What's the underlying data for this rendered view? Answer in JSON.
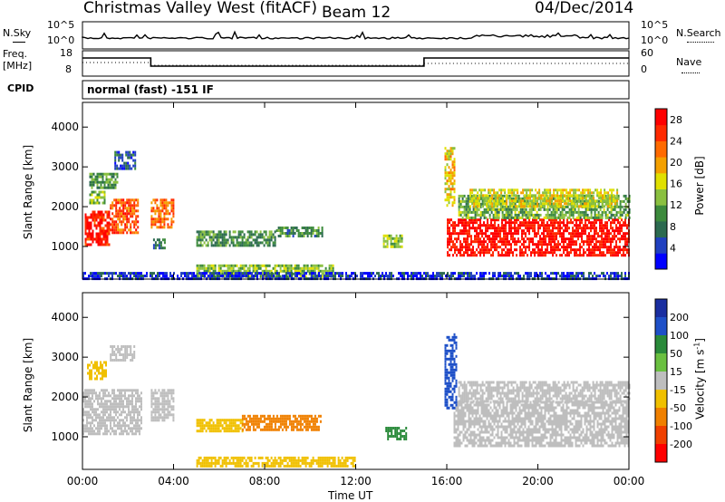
{
  "header": {
    "station": "Christmas Valley West (fitACF)",
    "beam": "Beam 12",
    "date": "04/Dec/2014"
  },
  "noise_panel": {
    "left_label": "N.Sky",
    "right_label": "N.Search",
    "left_ticks": [
      "10^5",
      "10^0"
    ],
    "right_ticks": [
      "10^5",
      "10^0"
    ]
  },
  "freq_panel": {
    "left_label": "Freq.",
    "left_unit": "[MHz]",
    "right_label": "Nave",
    "left_ticks": [
      "18",
      "8"
    ],
    "right_ticks": [
      "60",
      "0"
    ]
  },
  "cpid": {
    "label": "CPID",
    "value": "normal (fast) -151 IF"
  },
  "colors": {
    "trace": "#000000",
    "frame": "#000000",
    "ground_scatter": "#bebebe"
  },
  "chart_data": [
    {
      "type": "heatmap",
      "title": "Power",
      "xlabel": "",
      "ylabel": "Slant Range [km]",
      "x_ticks": [
        "00:00",
        "04:00",
        "08:00",
        "12:00",
        "16:00",
        "20:00",
        "00:00"
      ],
      "x_range_hours": [
        0,
        24
      ],
      "y_ticks": [
        1000,
        2000,
        3000,
        4000
      ],
      "ylim": [
        180,
        4620
      ],
      "colorbar": {
        "label": "Power [dB]",
        "ticks": [
          4,
          8,
          12,
          16,
          20,
          24,
          28
        ],
        "range": [
          0,
          30
        ],
        "colors": [
          "#0000ff",
          "#2040c0",
          "#2c6a50",
          "#3c8a3c",
          "#8ac040",
          "#e0e000",
          "#f4a000",
          "#ff6a00",
          "#ff2a00",
          "#ff0000"
        ]
      },
      "regions": [
        {
          "t": [
            0.1,
            1.2
          ],
          "r": [
            1050,
            1900
          ],
          "db": 27
        },
        {
          "t": [
            1.2,
            2.4
          ],
          "r": [
            1350,
            2200
          ],
          "db": 24
        },
        {
          "t": [
            0.3,
            1.5
          ],
          "r": [
            2500,
            2850
          ],
          "db": 10
        },
        {
          "t": [
            1.4,
            2.3
          ],
          "r": [
            2950,
            3400
          ],
          "db": 6
        },
        {
          "t": [
            0.3,
            1.0
          ],
          "r": [
            2100,
            2400
          ],
          "db": 14
        },
        {
          "t": [
            3.0,
            4.0
          ],
          "r": [
            1450,
            2200
          ],
          "db": 22
        },
        {
          "t": [
            3.1,
            3.6
          ],
          "r": [
            950,
            1200
          ],
          "db": 8
        },
        {
          "t": [
            5.0,
            8.5
          ],
          "r": [
            1050,
            1400
          ],
          "db": 10
        },
        {
          "t": [
            8.5,
            10.5
          ],
          "r": [
            1250,
            1500
          ],
          "db": 9
        },
        {
          "t": [
            5.0,
            11.0
          ],
          "r": [
            250,
            550
          ],
          "db": 13
        },
        {
          "t": [
            13.2,
            14.0
          ],
          "r": [
            1000,
            1300
          ],
          "db": 14
        },
        {
          "t": [
            15.9,
            16.3
          ],
          "r": [
            2000,
            3500
          ],
          "db": 18
        },
        {
          "t": [
            16.0,
            24.0
          ],
          "r": [
            800,
            1700
          ],
          "db": 28
        },
        {
          "t": [
            16.5,
            24.0
          ],
          "r": [
            1700,
            2300
          ],
          "db": 12
        },
        {
          "t": [
            17.0,
            23.5
          ],
          "r": [
            2000,
            2450
          ],
          "db": 16
        },
        {
          "t": [
            0.0,
            24.0
          ],
          "r": [
            200,
            360
          ],
          "db": 4
        }
      ]
    },
    {
      "type": "heatmap",
      "title": "Velocity",
      "xlabel": "Time UT",
      "ylabel": "Slant Range [km]",
      "x_ticks": [
        "00:00",
        "04:00",
        "08:00",
        "12:00",
        "16:00",
        "20:00",
        "00:00"
      ],
      "x_range_hours": [
        0,
        24
      ],
      "y_ticks": [
        1000,
        2000,
        3000,
        4000
      ],
      "ylim": [
        180,
        4620
      ],
      "colorbar": {
        "label": "Velocity [m s",
        "label_sup": "-1",
        "tick_labels": [
          "200",
          "100",
          "50",
          "15",
          "-15",
          "-50",
          "-100",
          "-200"
        ],
        "colors": [
          "#1a2ea0",
          "#1e50c8",
          "#2a8a3a",
          "#6ac040",
          "#bebebe",
          "#f0c000",
          "#f08000",
          "#f04000",
          "#ff0000"
        ]
      },
      "regions": [
        {
          "t": [
            0.0,
            2.6
          ],
          "r": [
            1050,
            2200
          ],
          "v": "gs"
        },
        {
          "t": [
            3.0,
            4.0
          ],
          "r": [
            1400,
            2200
          ],
          "v": "gs"
        },
        {
          "t": [
            0.2,
            1.0
          ],
          "r": [
            2450,
            2900
          ],
          "v": -50
        },
        {
          "t": [
            1.2,
            2.3
          ],
          "r": [
            2900,
            3300
          ],
          "v": -15
        },
        {
          "t": [
            5.0,
            7.0
          ],
          "r": [
            1150,
            1450
          ],
          "v": -50
        },
        {
          "t": [
            7.0,
            10.5
          ],
          "r": [
            1200,
            1550
          ],
          "v": -80
        },
        {
          "t": [
            5.0,
            12.0
          ],
          "r": [
            250,
            500
          ],
          "v": -50
        },
        {
          "t": [
            13.3,
            14.2
          ],
          "r": [
            950,
            1250
          ],
          "v": 50
        },
        {
          "t": [
            15.9,
            16.4
          ],
          "r": [
            1700,
            3600
          ],
          "v": 150
        },
        {
          "t": [
            16.3,
            24.0
          ],
          "r": [
            800,
            1900
          ],
          "v": "gs"
        },
        {
          "t": [
            16.5,
            24.0
          ],
          "r": [
            1900,
            2400
          ],
          "v": "gs"
        }
      ]
    }
  ]
}
